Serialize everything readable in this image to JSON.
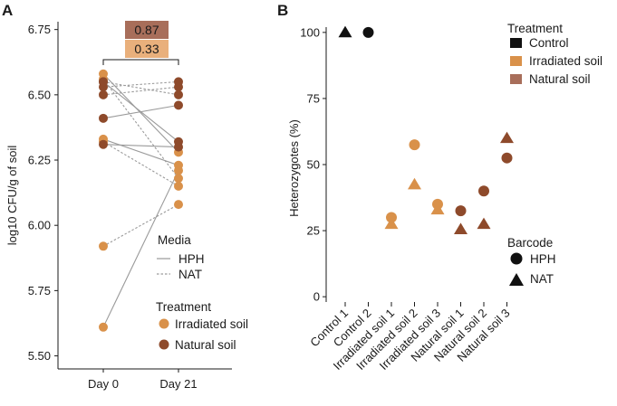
{
  "colors": {
    "irradiated": "#D9914A",
    "natural": "#8E4A2B",
    "control": "#111111",
    "line": "#9a9a9a",
    "pval_box_1": "#A86E5A",
    "pval_box_2": "#E9B07C"
  },
  "chart_data": [
    {
      "type": "scatter",
      "panel": "A",
      "title": "",
      "xlabel": "",
      "ylabel": "log10 CFU/g of soil",
      "categories": [
        "Day 0",
        "Day 21"
      ],
      "ylim": [
        5.45,
        6.78
      ],
      "yticks": [
        5.5,
        5.75,
        6.0,
        6.25,
        6.5,
        6.75
      ],
      "ytick_labels": [
        "5.50",
        "5.75",
        "6.00",
        "6.25",
        "6.50",
        "6.75"
      ],
      "pvalues": [
        "0.87",
        "0.33"
      ],
      "series": [
        {
          "name": "Irradiated soil HPH 1",
          "treatment": "irradiated",
          "media": "HPH",
          "values": [
            6.58,
            6.28
          ]
        },
        {
          "name": "Irradiated soil HPH 2",
          "treatment": "irradiated",
          "media": "HPH",
          "values": [
            6.33,
            6.23
          ]
        },
        {
          "name": "Irradiated soil HPH 3",
          "treatment": "irradiated",
          "media": "HPH",
          "values": [
            5.61,
            6.21
          ]
        },
        {
          "name": "Irradiated soil NAT 1",
          "treatment": "irradiated",
          "media": "NAT",
          "values": [
            6.56,
            6.18
          ]
        },
        {
          "name": "Irradiated soil NAT 2",
          "treatment": "irradiated",
          "media": "NAT",
          "values": [
            6.32,
            6.15
          ]
        },
        {
          "name": "Irradiated soil NAT 3",
          "treatment": "irradiated",
          "media": "NAT",
          "values": [
            5.92,
            6.08
          ]
        },
        {
          "name": "Natural soil HPH 1",
          "treatment": "natural",
          "media": "HPH",
          "values": [
            6.55,
            6.32
          ]
        },
        {
          "name": "Natural soil HPH 2",
          "treatment": "natural",
          "media": "HPH",
          "values": [
            6.41,
            6.46
          ]
        },
        {
          "name": "Natural soil HPH 3",
          "treatment": "natural",
          "media": "HPH",
          "values": [
            6.31,
            6.3
          ]
        },
        {
          "name": "Natural soil NAT 1",
          "treatment": "natural",
          "media": "NAT",
          "values": [
            6.53,
            6.55
          ]
        },
        {
          "name": "Natural soil NAT 2",
          "treatment": "natural",
          "media": "NAT",
          "values": [
            6.5,
            6.53
          ]
        },
        {
          "name": "Natural soil NAT 3",
          "treatment": "natural",
          "media": "NAT",
          "values": [
            6.55,
            6.5
          ]
        }
      ],
      "legend": {
        "media_title": "Media",
        "media_items": [
          "HPH",
          "NAT"
        ],
        "treatment_title": "Treatment",
        "treatment_items": [
          "Irradiated soil",
          "Natural soil"
        ]
      }
    },
    {
      "type": "scatter",
      "panel": "B",
      "title": "",
      "xlabel": "",
      "ylabel": "Heterozygotes (%)",
      "categories": [
        "Control 1",
        "Control 2",
        "Irradiated soil 1",
        "Irradiated soil 2",
        "Irradiated soil 3",
        "Natural soil 1",
        "Natural soil 2",
        "Natural soil 3"
      ],
      "ylim": [
        -2,
        102
      ],
      "yticks": [
        0,
        25,
        50,
        75,
        100
      ],
      "ytick_labels": [
        "0",
        "25",
        "50",
        "75",
        "100"
      ],
      "series": [
        {
          "name": "HPH",
          "shape": "circle",
          "values": [
            null,
            100,
            30,
            57.5,
            35,
            32.5,
            40,
            52.5
          ]
        },
        {
          "name": "NAT",
          "shape": "triangle",
          "values": [
            100,
            null,
            27.5,
            42.5,
            33,
            25.5,
            27.5,
            60
          ]
        }
      ],
      "treatments": [
        "control",
        "control",
        "irradiated",
        "irradiated",
        "irradiated",
        "natural",
        "natural",
        "natural"
      ],
      "legend": {
        "treatment_title": "Treatment",
        "treatment_items": [
          "Control",
          "Irradiated soil",
          "Natural soil"
        ],
        "barcode_title": "Barcode",
        "barcode_items": [
          "HPH",
          "NAT"
        ]
      }
    }
  ],
  "panels": {
    "a_letter": "A",
    "b_letter": "B"
  }
}
